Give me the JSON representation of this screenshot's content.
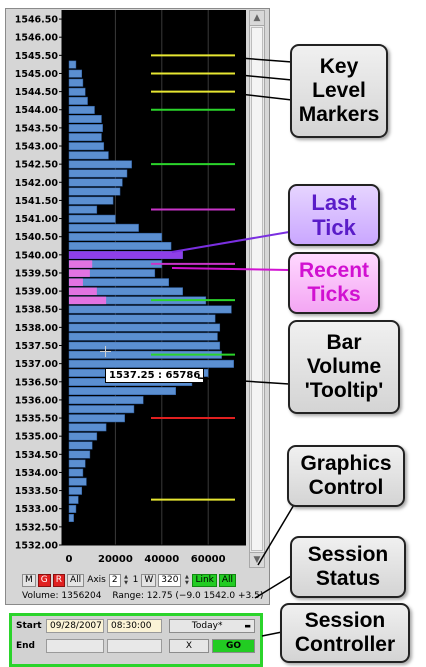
{
  "chart_data": {
    "type": "bar",
    "orientation": "horizontal",
    "y_ticks": [
      "1546.50",
      "1546.00",
      "1545.50",
      "1545.00",
      "1544.50",
      "1544.00",
      "1543.50",
      "1543.00",
      "1542.50",
      "1542.00",
      "1541.50",
      "1541.00",
      "1540.50",
      "1540.00",
      "1539.50",
      "1539.00",
      "1538.50",
      "1538.00",
      "1537.50",
      "1537.00",
      "1536.50",
      "1536.00",
      "1535.50",
      "1535.00",
      "1534.50",
      "1534.00",
      "1533.50",
      "1533.00",
      "1532.50",
      "1532.00"
    ],
    "x_ticks": [
      "0",
      "20000",
      "40000",
      "60000"
    ],
    "xlim": [
      0,
      75000
    ],
    "ylim": [
      1532.0,
      1546.75
    ],
    "price_step": 0.25,
    "series": [
      {
        "color": "#5b8fd1",
        "points": [
          [
            1545.25,
            3000
          ],
          [
            1545.0,
            5500
          ],
          [
            1544.75,
            6000
          ],
          [
            1544.5,
            7000
          ],
          [
            1544.25,
            8000
          ],
          [
            1544.0,
            11000
          ],
          [
            1543.75,
            14000
          ],
          [
            1543.5,
            14500
          ],
          [
            1543.25,
            14000
          ],
          [
            1543.0,
            15000
          ],
          [
            1542.75,
            17000
          ],
          [
            1542.5,
            27000
          ],
          [
            1542.25,
            25000
          ],
          [
            1542.0,
            23000
          ],
          [
            1541.75,
            22000
          ],
          [
            1541.5,
            19000
          ],
          [
            1541.25,
            12000
          ],
          [
            1541.0,
            20000
          ],
          [
            1540.75,
            30000
          ],
          [
            1540.5,
            40000
          ],
          [
            1540.25,
            44000
          ],
          [
            1540.0,
            49000
          ],
          [
            1539.75,
            40000
          ],
          [
            1539.5,
            37000
          ],
          [
            1539.25,
            43000
          ],
          [
            1539.0,
            49000
          ],
          [
            1538.75,
            59000
          ],
          [
            1538.5,
            70000
          ],
          [
            1538.25,
            63000
          ],
          [
            1538.0,
            65000
          ],
          [
            1537.75,
            64000
          ],
          [
            1537.5,
            65000
          ],
          [
            1537.25,
            65786
          ],
          [
            1537.0,
            71000
          ],
          [
            1536.75,
            60000
          ],
          [
            1536.5,
            53000
          ],
          [
            1536.25,
            46000
          ],
          [
            1536.0,
            32000
          ],
          [
            1535.75,
            28000
          ],
          [
            1535.5,
            24000
          ],
          [
            1535.25,
            16000
          ],
          [
            1535.0,
            12000
          ],
          [
            1534.75,
            10000
          ],
          [
            1534.5,
            9000
          ],
          [
            1534.25,
            7000
          ],
          [
            1534.0,
            6000
          ],
          [
            1533.75,
            7500
          ],
          [
            1533.5,
            5500
          ],
          [
            1533.25,
            4000
          ],
          [
            1533.0,
            3000
          ],
          [
            1532.75,
            2000
          ]
        ]
      }
    ],
    "last_tick": {
      "price": 1540.0,
      "color": "#8f3fe8"
    },
    "recent_ticks": {
      "color": "#e273e2",
      "points": [
        [
          1539.75,
          10000
        ],
        [
          1539.5,
          9000
        ],
        [
          1539.25,
          6000
        ],
        [
          1539.0,
          12000
        ],
        [
          1538.75,
          16000
        ]
      ]
    },
    "key_levels": [
      {
        "price": 1545.5,
        "color": "#e6e632"
      },
      {
        "price": 1545.0,
        "color": "#e6e632"
      },
      {
        "price": 1544.5,
        "color": "#e6e632"
      },
      {
        "price": 1544.0,
        "color": "#2bd42b"
      },
      {
        "price": 1542.5,
        "color": "#2bd42b"
      },
      {
        "price": 1541.25,
        "color": "#c834c8"
      },
      {
        "price": 1539.75,
        "color": "#c834c8"
      },
      {
        "price": 1538.75,
        "color": "#2bd42b"
      },
      {
        "price": 1537.25,
        "color": "#2bd42b"
      },
      {
        "price": 1535.5,
        "color": "#e02020"
      },
      {
        "price": 1533.25,
        "color": "#e6e632"
      }
    ],
    "grid": true,
    "background": "#000000"
  },
  "tooltip": {
    "text": "1537.25 : 65786"
  },
  "controls": {
    "m_label": "M",
    "g_label": "G",
    "r_label": "R",
    "all_label": "All",
    "axis_label": "Axis",
    "axis_value": "2",
    "w_prefix": "1",
    "w_label": "W",
    "w_value": "320",
    "link_label": "Link",
    "all2_label": "All"
  },
  "status": {
    "volume_label": "Volume:",
    "volume_value": "1356204",
    "range_label": "Range:",
    "range_value": "12.75  (−9.0 1542.0 +3.5)"
  },
  "controller": {
    "start_label": "Start",
    "start_date": "09/28/2007",
    "start_time": "08:30:00",
    "preset": "Today*",
    "end_label": "End",
    "cancel_label": "X",
    "go_label": "GO"
  },
  "callouts": {
    "key_levels": [
      "Key",
      "Level",
      "Markers"
    ],
    "last_tick": [
      "Last",
      "Tick"
    ],
    "recent_ticks": [
      "Recent",
      "Ticks"
    ],
    "tooltip": [
      "Bar",
      "Volume",
      "'Tooltip'"
    ],
    "graphics": [
      "Graphics",
      "Control"
    ],
    "session_status": [
      "Session",
      "Status"
    ],
    "session_controller": [
      "Session",
      "Controller"
    ]
  },
  "icons": {
    "scroll_up": "▲",
    "scroll_down": "▼",
    "spin_up": "▲",
    "spin_down": "▼",
    "dropdown": "▬"
  },
  "colors": {
    "controller_border": "#2bd42b",
    "go_button": "#22cc22",
    "active_red": "#e02020"
  }
}
